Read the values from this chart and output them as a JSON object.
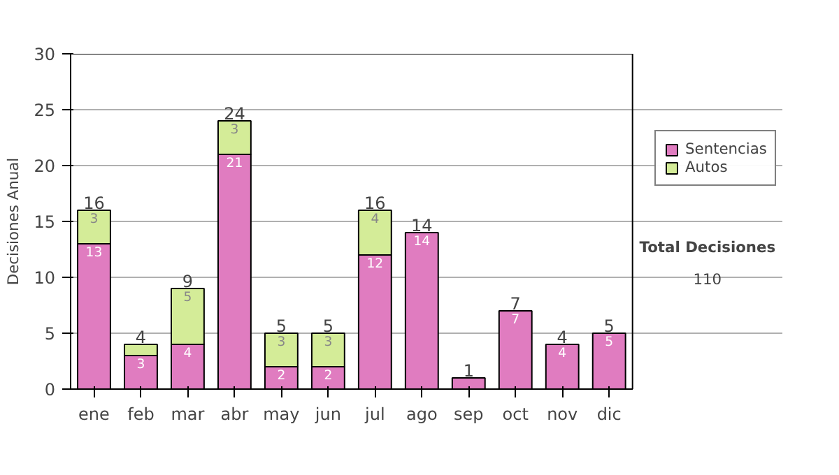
{
  "chart_data": {
    "type": "bar",
    "stacked": true,
    "ylabel": "Decisiones Anual",
    "categories": [
      "ene",
      "feb",
      "mar",
      "abr",
      "may",
      "jun",
      "jul",
      "ago",
      "sep",
      "oct",
      "nov",
      "dic"
    ],
    "series": [
      {
        "name": "Sentencias",
        "color": "#e07cc0",
        "values": [
          13,
          3,
          4,
          21,
          2,
          2,
          12,
          14,
          1,
          7,
          4,
          5
        ],
        "value_labels": [
          "13",
          "3",
          "4",
          "21",
          "2",
          "2",
          "12",
          "14",
          null,
          "7",
          "4",
          "5"
        ]
      },
      {
        "name": "Autos",
        "color": "#d4ec98",
        "values": [
          3,
          1,
          5,
          3,
          3,
          3,
          4,
          0,
          0,
          0,
          0,
          0
        ],
        "value_labels": [
          "3",
          null,
          "5",
          "3",
          "3",
          "3",
          "4",
          null,
          null,
          null,
          null,
          null
        ]
      }
    ],
    "totals": [
      "16",
      "4",
      "9",
      "24",
      "5",
      "5",
      "16",
      "14",
      "1",
      "7",
      "4",
      "5"
    ],
    "ylim": [
      0,
      30
    ],
    "yticks": [
      0,
      5,
      10,
      15,
      20,
      25,
      30
    ],
    "grid": "y",
    "legend": "right",
    "annotations": [
      "Total Decisiones",
      "110"
    ]
  }
}
